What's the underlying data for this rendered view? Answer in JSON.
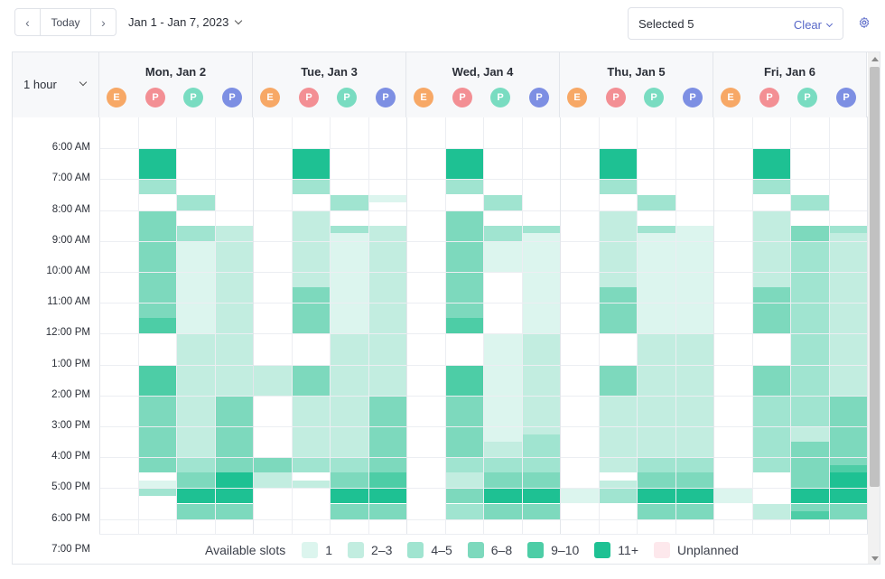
{
  "toolbar": {
    "prev_label": "‹",
    "today_label": "Today",
    "next_label": "›",
    "date_range": "Jan 1 - Jan 7, 2023",
    "selected_text": "Selected 5",
    "clear_label": "Clear",
    "settings_icon": "gear-icon"
  },
  "grid": {
    "interval_label": "1 hour",
    "days": [
      {
        "label": "Mon, Jan 2",
        "badges": [
          "E",
          "P",
          "P",
          "P"
        ]
      },
      {
        "label": "Tue, Jan 3",
        "badges": [
          "E",
          "P",
          "P",
          "P"
        ]
      },
      {
        "label": "Wed, Jan 4",
        "badges": [
          "E",
          "P",
          "P",
          "P"
        ]
      },
      {
        "label": "Thu, Jan 5",
        "badges": [
          "E",
          "P",
          "P",
          "P"
        ]
      },
      {
        "label": "Fri, Jan 6",
        "badges": [
          "E",
          "P",
          "P",
          "P"
        ]
      }
    ],
    "times": [
      "6:00 AM",
      "7:00 AM",
      "8:00 AM",
      "9:00 AM",
      "10:00 AM",
      "11:00 AM",
      "12:00 PM",
      "1:00 PM",
      "2:00 PM",
      "3:00 PM",
      "4:00 PM",
      "5:00 PM",
      "6:00 PM",
      "7:00 PM"
    ],
    "start_hour": 5,
    "colors": {
      "1": "#dcf5ee",
      "2": "#c2ede0",
      "3": "#a0e4d0",
      "4": "#7dd9bd",
      "5": "#4dcda6",
      "6": "#1ec193",
      "empty": "#ffffff"
    },
    "blocks": [
      [
        [],
        [
          [
            6,
            7,
            6
          ],
          [
            7,
            7.5,
            3
          ],
          [
            8,
            11.5,
            4
          ],
          [
            11.5,
            12,
            5
          ],
          [
            13,
            14,
            5
          ],
          [
            14,
            16.5,
            4
          ],
          [
            16.75,
            17,
            1
          ],
          [
            17,
            17.25,
            3
          ]
        ],
        [
          [
            7.5,
            8,
            3
          ],
          [
            8.5,
            9,
            3
          ],
          [
            9,
            12,
            1
          ],
          [
            12,
            16,
            2
          ],
          [
            16,
            16.5,
            3
          ],
          [
            16.5,
            17,
            4
          ],
          [
            17,
            17.5,
            6
          ],
          [
            17.5,
            18,
            4
          ]
        ],
        [
          [
            8.5,
            12,
            2
          ],
          [
            12,
            14,
            2
          ],
          [
            14,
            16.5,
            4
          ],
          [
            16.5,
            17.5,
            6
          ],
          [
            17.5,
            18,
            4
          ]
        ]
      ],
      [
        [
          [
            13,
            14,
            2
          ],
          [
            16,
            16.5,
            4
          ],
          [
            16.5,
            17,
            2
          ]
        ],
        [
          [
            6,
            7,
            6
          ],
          [
            7,
            7.5,
            3
          ],
          [
            8,
            10.5,
            2
          ],
          [
            10.5,
            12,
            4
          ],
          [
            13,
            14,
            4
          ],
          [
            14,
            16,
            2
          ],
          [
            16,
            16.5,
            3
          ],
          [
            16.75,
            17,
            2
          ]
        ],
        [
          [
            7.5,
            8,
            3
          ],
          [
            8.5,
            8.75,
            3
          ],
          [
            8.75,
            12,
            1
          ],
          [
            12,
            16,
            2
          ],
          [
            16,
            16.5,
            3
          ],
          [
            16.5,
            17,
            4
          ],
          [
            17,
            17.5,
            6
          ],
          [
            17.5,
            18,
            4
          ]
        ],
        [
          [
            7.5,
            7.75,
            1
          ],
          [
            8.5,
            12,
            2
          ],
          [
            12,
            14,
            2
          ],
          [
            14,
            16,
            4
          ],
          [
            16,
            16.5,
            4
          ],
          [
            16.5,
            17,
            5
          ],
          [
            17,
            17.5,
            6
          ],
          [
            17.5,
            18,
            4
          ]
        ]
      ],
      [
        [],
        [
          [
            6,
            7,
            6
          ],
          [
            7,
            7.5,
            3
          ],
          [
            8,
            11.5,
            4
          ],
          [
            11.5,
            12,
            5
          ],
          [
            13,
            14,
            5
          ],
          [
            14,
            16,
            4
          ],
          [
            16,
            16.5,
            3
          ],
          [
            16.5,
            17,
            2
          ],
          [
            17,
            17.5,
            4
          ],
          [
            17.5,
            18,
            3
          ]
        ],
        [
          [
            7.5,
            8,
            3
          ],
          [
            8.5,
            9,
            3
          ],
          [
            9,
            10,
            1
          ],
          [
            12,
            15.5,
            1
          ],
          [
            15.5,
            16,
            2
          ],
          [
            16,
            16.5,
            3
          ],
          [
            16.5,
            17,
            4
          ],
          [
            17,
            17.5,
            6
          ],
          [
            17.5,
            18,
            4
          ]
        ],
        [
          [
            8.5,
            8.75,
            3
          ],
          [
            8.75,
            12,
            1
          ],
          [
            12,
            15.25,
            2
          ],
          [
            15.25,
            16,
            3
          ],
          [
            16,
            16.5,
            3
          ],
          [
            16.5,
            17,
            4
          ],
          [
            17,
            17.5,
            6
          ],
          [
            17.5,
            18,
            4
          ]
        ]
      ],
      [
        [
          [
            17,
            17.5,
            1
          ]
        ],
        [
          [
            6,
            7,
            6
          ],
          [
            7,
            7.5,
            3
          ],
          [
            8,
            10.5,
            2
          ],
          [
            10.5,
            12,
            4
          ],
          [
            13,
            14,
            4
          ],
          [
            14,
            16.5,
            2
          ],
          [
            16.75,
            17,
            2
          ],
          [
            17,
            17.5,
            3
          ]
        ],
        [
          [
            7.5,
            8,
            3
          ],
          [
            8.5,
            8.75,
            3
          ],
          [
            8.75,
            12,
            1
          ],
          [
            12,
            16,
            2
          ],
          [
            16,
            16.5,
            3
          ],
          [
            16.5,
            17,
            4
          ],
          [
            17,
            17.5,
            6
          ],
          [
            17.5,
            18,
            4
          ]
        ],
        [
          [
            8.5,
            12,
            1
          ],
          [
            12,
            16,
            2
          ],
          [
            16,
            16.5,
            3
          ],
          [
            16.5,
            17,
            4
          ],
          [
            17,
            17.5,
            6
          ],
          [
            17.5,
            18,
            4
          ]
        ]
      ],
      [
        [
          [
            17,
            17.5,
            1
          ]
        ],
        [
          [
            6,
            7,
            6
          ],
          [
            7,
            7.5,
            3
          ],
          [
            8,
            10.5,
            2
          ],
          [
            10.5,
            12,
            4
          ],
          [
            13,
            14,
            4
          ],
          [
            14,
            16.5,
            3
          ],
          [
            17.5,
            18,
            2
          ]
        ],
        [
          [
            7.5,
            8,
            3
          ],
          [
            8.5,
            9,
            4
          ],
          [
            9,
            12,
            3
          ],
          [
            12,
            15,
            3
          ],
          [
            15,
            15.5,
            2
          ],
          [
            15.5,
            16.5,
            4
          ],
          [
            16.5,
            17,
            4
          ],
          [
            17,
            17.5,
            6
          ],
          [
            17.5,
            17.75,
            4
          ],
          [
            17.75,
            18,
            5
          ]
        ],
        [
          [
            8.5,
            8.75,
            3
          ],
          [
            8.75,
            12,
            2
          ],
          [
            12,
            14,
            2
          ],
          [
            14,
            16.25,
            4
          ],
          [
            16.25,
            16.5,
            5
          ],
          [
            16.5,
            17.5,
            6
          ],
          [
            17.5,
            18,
            4
          ]
        ]
      ]
    ]
  },
  "legend": {
    "title": "Available slots",
    "items": [
      {
        "label": "1",
        "color": "#dcf5ee"
      },
      {
        "label": "2–3",
        "color": "#c2ede0"
      },
      {
        "label": "4–5",
        "color": "#a0e4d0"
      },
      {
        "label": "6–8",
        "color": "#7dd9bd"
      },
      {
        "label": "9–10",
        "color": "#4dcda6"
      },
      {
        "label": "11+",
        "color": "#1ec193"
      },
      {
        "label": "Unplanned",
        "color": "#fde8ec"
      }
    ]
  }
}
